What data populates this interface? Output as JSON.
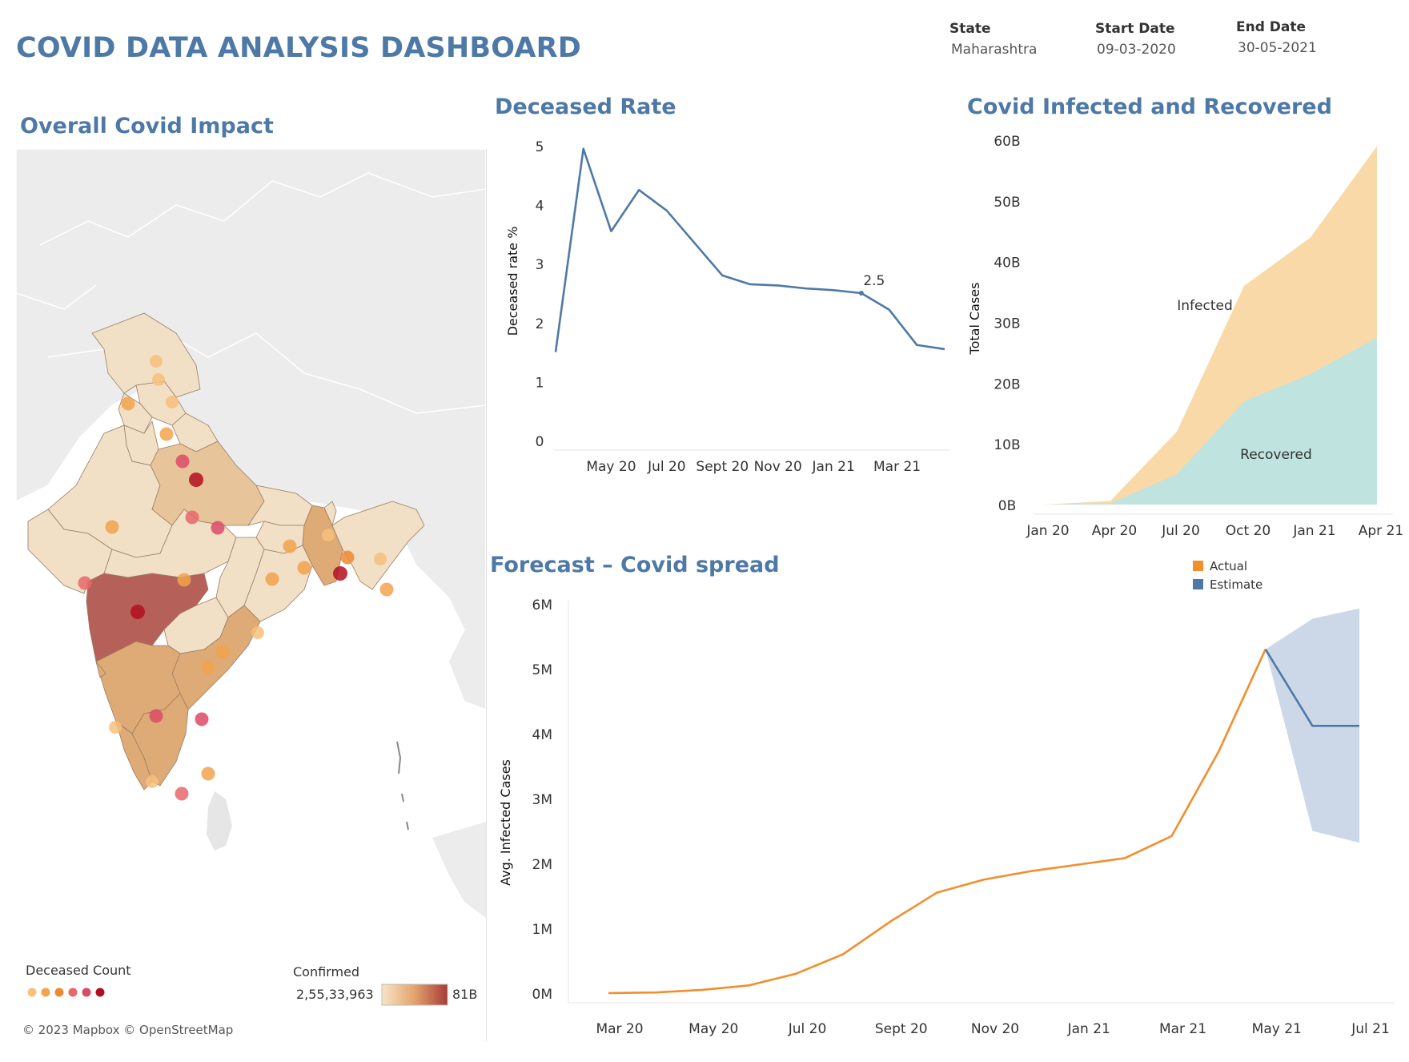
{
  "header": {
    "title": "COVID DATA ANALYSIS DASHBOARD",
    "filters": [
      {
        "label": "State",
        "value": "Maharashtra"
      },
      {
        "label": "Start Date",
        "value": "09-03-2020"
      },
      {
        "label": "End Date",
        "value": "30-05-2021"
      }
    ]
  },
  "map": {
    "title": "Overall Covid Impact",
    "legend_deceased_title": "Deceased Count",
    "legend_confirmed_title": "Confirmed",
    "legend_confirmed_min": "2,55,33,963",
    "legend_confirmed_max": "81B",
    "attribution": "© 2023 Mapbox © OpenStreetMap",
    "colors": {
      "land": "#ececec",
      "india_light": "#f1dfc6",
      "india_mid": "#e8c49a",
      "india_orange": "#deaa75",
      "maharashtra": "#b5615a",
      "dot_colors": [
        "#f8c07b",
        "#f2a34c",
        "#ee8a33",
        "#e7676b",
        "#dc4b66",
        "#b10f1f"
      ]
    }
  },
  "chart_data": [
    {
      "type": "line",
      "title": "Deceased Rate",
      "ylabel": "Deceased rate %",
      "xlabel": "",
      "ylim": [
        0,
        5
      ],
      "y_ticks": [
        "0",
        "1",
        "2",
        "3",
        "4",
        "5"
      ],
      "x_ticks": [
        "May 20",
        "Jul 20",
        "Sept 20",
        "Nov 20",
        "Jan 21",
        "Mar 21"
      ],
      "x": [
        "Mar 20",
        "Apr 20",
        "May 20",
        "Jun 20",
        "Jul 20",
        "Aug 20",
        "Sep 20",
        "Oct 20",
        "Nov 20",
        "Dec 20",
        "Jan 21",
        "Feb 21",
        "Mar 21",
        "Apr 21",
        "May 21"
      ],
      "values": [
        1.5,
        4.95,
        3.55,
        4.25,
        3.9,
        3.35,
        2.8,
        2.65,
        2.63,
        2.58,
        2.55,
        2.5,
        2.22,
        1.62,
        1.55
      ],
      "annotation": {
        "x": "Feb 21",
        "label": "2.5"
      },
      "color": "#4e79a7"
    },
    {
      "type": "area",
      "title": "Covid Infected and  Recovered",
      "ylabel": "Total Cases",
      "xlabel": "",
      "ylim": [
        0,
        60
      ],
      "y_ticks": [
        "0B",
        "10B",
        "20B",
        "30B",
        "40B",
        "50B",
        "60B"
      ],
      "x_ticks": [
        "Jan 20",
        "Apr 20",
        "Jul 20",
        "Oct 20",
        "Jan 21",
        "Apr 21"
      ],
      "x": [
        "Jan 20",
        "Apr 20",
        "Jul 20",
        "Oct 20",
        "Jan 21",
        "Apr 21"
      ],
      "series": [
        {
          "name": "Infected",
          "values": [
            0,
            0.6,
            12,
            36,
            44,
            59
          ],
          "color": "#f9d9a8"
        },
        {
          "name": "Recovered",
          "values": [
            0,
            0.2,
            5,
            17,
            21.5,
            27.5
          ],
          "color": "#bfe3df"
        }
      ]
    },
    {
      "type": "line",
      "title": "Forecast – Covid spread",
      "ylabel": "Avg. Infected Cases",
      "xlabel": "",
      "ylim": [
        0,
        6
      ],
      "y_ticks": [
        "0M",
        "1M",
        "2M",
        "3M",
        "4M",
        "5M",
        "6M"
      ],
      "x_ticks": [
        "Mar 20",
        "May 20",
        "Jul 20",
        "Sept 20",
        "Nov 20",
        "Jan 21",
        "Mar 21",
        "May 21",
        "Jul 21"
      ],
      "legend": [
        {
          "name": "Actual",
          "color": "#f28e2b"
        },
        {
          "name": "Estimate",
          "color": "#4e79a7"
        }
      ],
      "x": [
        "Mar 20",
        "Apr 20",
        "May 20",
        "Jun 20",
        "Jul 20",
        "Aug 20",
        "Sep 20",
        "Oct 20",
        "Nov 20",
        "Dec 20",
        "Jan 21",
        "Feb 21",
        "Mar 21",
        "Apr 21",
        "May 21",
        "Jun 21",
        "Jul 21"
      ],
      "series": [
        {
          "name": "Actual",
          "values": [
            0.0,
            0.01,
            0.05,
            0.12,
            0.3,
            0.6,
            1.1,
            1.55,
            1.75,
            1.88,
            1.98,
            2.08,
            2.42,
            3.72,
            5.3,
            null,
            null
          ],
          "color": "#f28e2b"
        },
        {
          "name": "Estimate",
          "values": [
            null,
            null,
            null,
            null,
            null,
            null,
            null,
            null,
            null,
            null,
            null,
            null,
            null,
            null,
            5.3,
            4.12,
            4.12
          ],
          "color": "#4e79a7"
        }
      ],
      "band": {
        "x": [
          "May 21",
          "Jun 21",
          "Jul 21"
        ],
        "upper": [
          5.3,
          5.77,
          5.93
        ],
        "lower": [
          5.3,
          2.5,
          2.32
        ],
        "color": "#c9d6e6"
      }
    }
  ]
}
